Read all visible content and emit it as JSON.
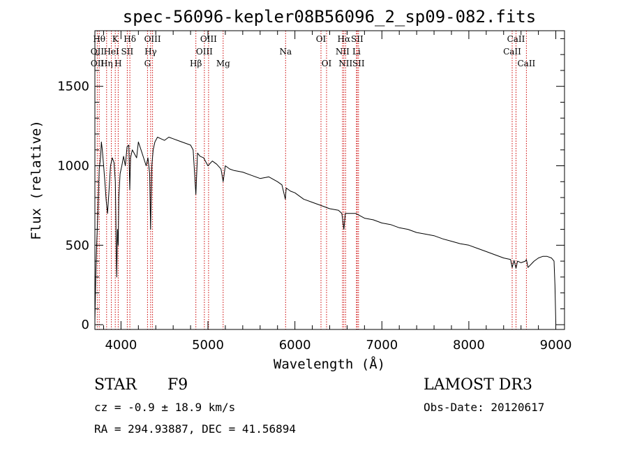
{
  "chart_data": {
    "type": "line",
    "title": "spec-56096-kepler08B56096_2_sp09-082.fits",
    "xlabel": "Wavelength (Å)",
    "ylabel": "Flux (relative)",
    "xlim": [
      3700,
      9100
    ],
    "ylim": [
      -30,
      1850
    ],
    "x_ticks": [
      4000,
      5000,
      6000,
      7000,
      8000,
      9000
    ],
    "y_ticks": [
      0,
      500,
      1000,
      1500
    ],
    "series": [
      {
        "name": "flux",
        "x": [
          3700,
          3710,
          3720,
          3735,
          3750,
          3765,
          3775,
          3785,
          3800,
          3815,
          3830,
          3845,
          3860,
          3880,
          3900,
          3920,
          3935,
          3950,
          3960,
          3968,
          3975,
          3990,
          4010,
          4030,
          4050,
          4070,
          4090,
          4101,
          4110,
          4130,
          4150,
          4180,
          4200,
          4230,
          4260,
          4290,
          4310,
          4330,
          4340,
          4355,
          4370,
          4390,
          4420,
          4460,
          4500,
          4550,
          4600,
          4650,
          4700,
          4750,
          4800,
          4830,
          4861,
          4880,
          4910,
          4950,
          5000,
          5050,
          5100,
          5150,
          5175,
          5200,
          5250,
          5300,
          5400,
          5500,
          5600,
          5700,
          5800,
          5850,
          5890,
          5900,
          5950,
          6000,
          6100,
          6200,
          6300,
          6400,
          6500,
          6540,
          6563,
          6580,
          6650,
          6700,
          6800,
          6900,
          7000,
          7100,
          7200,
          7300,
          7400,
          7500,
          7600,
          7700,
          7800,
          7900,
          8000,
          8100,
          8200,
          8300,
          8400,
          8480,
          8498,
          8520,
          8542,
          8560,
          8600,
          8650,
          8662,
          8680,
          8750,
          8800,
          8850,
          8900,
          8950,
          8980,
          8990,
          9000
        ],
        "y": [
          20,
          300,
          500,
          720,
          980,
          1050,
          1150,
          1100,
          1000,
          900,
          780,
          700,
          820,
          1000,
          1050,
          1020,
          900,
          300,
          600,
          500,
          800,
          950,
          1000,
          1060,
          1000,
          1120,
          1130,
          850,
          1050,
          1100,
          1080,
          1050,
          1150,
          1100,
          1050,
          1000,
          1050,
          950,
          600,
          1000,
          1100,
          1150,
          1180,
          1170,
          1160,
          1180,
          1170,
          1160,
          1150,
          1140,
          1130,
          1100,
          820,
          1080,
          1060,
          1050,
          1000,
          1030,
          1010,
          980,
          900,
          1000,
          980,
          970,
          960,
          940,
          920,
          930,
          900,
          880,
          790,
          860,
          840,
          830,
          790,
          770,
          750,
          730,
          720,
          700,
          600,
          700,
          700,
          700,
          670,
          660,
          640,
          630,
          610,
          600,
          580,
          570,
          560,
          540,
          525,
          510,
          500,
          480,
          460,
          440,
          420,
          410,
          360,
          405,
          355,
          400,
          390,
          400,
          410,
          360,
          400,
          420,
          430,
          430,
          420,
          400,
          250,
          20
        ]
      }
    ],
    "line_labels": [
      {
        "text": "Hθ",
        "wavelength": 3750,
        "row": 1
      },
      {
        "text": "K",
        "wavelength": 3934,
        "row": 1
      },
      {
        "text": "Hδ",
        "wavelength": 4102,
        "row": 1
      },
      {
        "text": "OIII",
        "wavelength": 4363,
        "row": 1
      },
      {
        "text": "OIII",
        "wavelength": 5007,
        "row": 1
      },
      {
        "text": "OI",
        "wavelength": 6300,
        "row": 1
      },
      {
        "text": "Hα",
        "wavelength": 6563,
        "row": 1
      },
      {
        "text": "SII",
        "wavelength": 6716,
        "row": 1
      },
      {
        "text": "CaII",
        "wavelength": 8542,
        "row": 1
      },
      {
        "text": "OII",
        "wavelength": 3727,
        "row": 2
      },
      {
        "text": "HeI",
        "wavelength": 3889,
        "row": 2
      },
      {
        "text": "SII",
        "wavelength": 4072,
        "row": 2
      },
      {
        "text": "Hγ",
        "wavelength": 4341,
        "row": 2
      },
      {
        "text": "OIII",
        "wavelength": 4959,
        "row": 2
      },
      {
        "text": "Na",
        "wavelength": 5893,
        "row": 2
      },
      {
        "text": "NII",
        "wavelength": 6548,
        "row": 2
      },
      {
        "text": "Li",
        "wavelength": 6708,
        "row": 2
      },
      {
        "text": "CaII",
        "wavelength": 8498,
        "row": 2
      },
      {
        "text": "OII",
        "wavelength": 3729,
        "row": 3
      },
      {
        "text": "Hη",
        "wavelength": 3835,
        "row": 3
      },
      {
        "text": "H",
        "wavelength": 3968,
        "row": 3
      },
      {
        "text": "G",
        "wavelength": 4305,
        "row": 3
      },
      {
        "text": "Hβ",
        "wavelength": 4861,
        "row": 3
      },
      {
        "text": "Mg",
        "wavelength": 5175,
        "row": 3
      },
      {
        "text": "OI",
        "wavelength": 6364,
        "row": 3
      },
      {
        "text": "NII",
        "wavelength": 6583,
        "row": 3
      },
      {
        "text": "SII",
        "wavelength": 6731,
        "row": 3
      },
      {
        "text": "CaII",
        "wavelength": 8662,
        "row": 3
      }
    ],
    "marker_lines": [
      3727,
      3750,
      3835,
      3889,
      3934,
      3968,
      4072,
      4102,
      4305,
      4341,
      4363,
      4861,
      4959,
      5007,
      5175,
      5893,
      6300,
      6364,
      6548,
      6563,
      6583,
      6708,
      6716,
      6731,
      8498,
      8542,
      8662
    ],
    "line_color": "#000000",
    "marker_color": "#cc0000"
  },
  "info": {
    "object_class": "STAR",
    "subclass": "F9",
    "redshift": "cz = -0.9 ± 18.9 km/s",
    "coords": "RA = 294.93887, DEC =  41.56894",
    "survey": "LAMOST DR3",
    "obs_date": "Obs-Date: 20120617"
  }
}
